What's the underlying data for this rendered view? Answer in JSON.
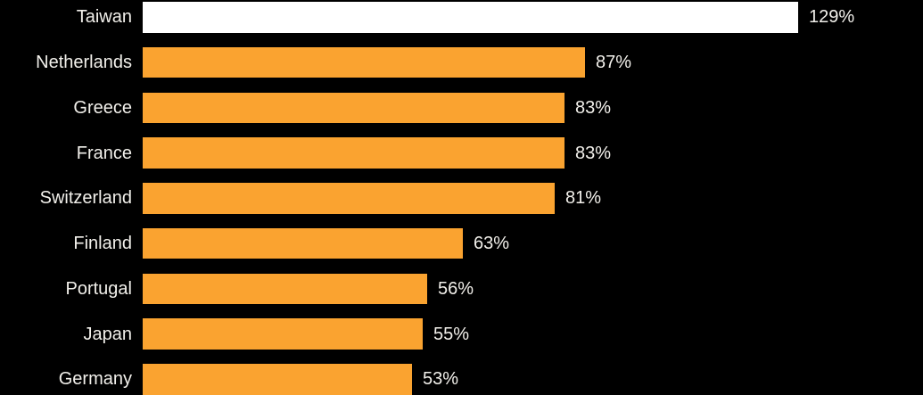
{
  "chart_data": {
    "type": "bar",
    "orientation": "horizontal",
    "title": "",
    "xlabel": "",
    "ylabel": "",
    "grid": false,
    "legend": false,
    "xlim": [
      0,
      129
    ],
    "categories": [
      "Taiwan",
      "Netherlands",
      "Greece",
      "France",
      "Switzerland",
      "Finland",
      "Portugal",
      "Japan",
      "Germany"
    ],
    "values": [
      129,
      87,
      83,
      83,
      81,
      63,
      56,
      55,
      53
    ],
    "value_labels": [
      "129%",
      "87%",
      "83%",
      "83%",
      "81%",
      "63%",
      "56%",
      "55%",
      "53%"
    ],
    "highlighted_category": "Taiwan",
    "note": "bottom row (Germany) is partially clipped by the image edge"
  },
  "colors": {
    "background": "#000000",
    "bar_default": "#faa330",
    "bar_highlight": "#ffffff",
    "label_text": "#f2f0eb",
    "value_text": "#f2f0eb"
  }
}
